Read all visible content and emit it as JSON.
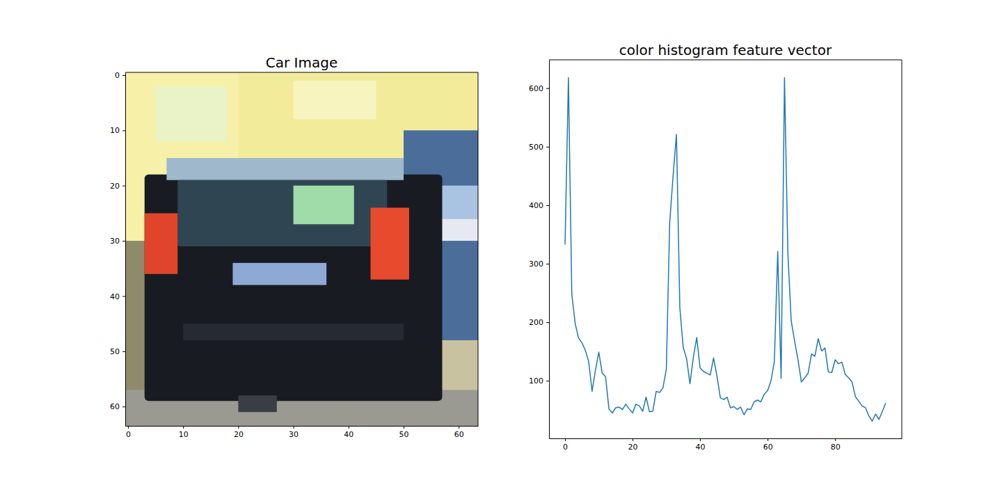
{
  "chart_data": [
    {
      "type": "image",
      "title": "Car Image",
      "xlim": [
        -0.5,
        63.5
      ],
      "ylim": [
        63.5,
        -0.5
      ],
      "xticks": [
        0,
        10,
        20,
        30,
        40,
        50,
        60
      ],
      "yticks": [
        0,
        10,
        20,
        30,
        40,
        50,
        60
      ]
    },
    {
      "type": "line",
      "title": "color histogram feature vector",
      "color": "#1f77b4",
      "x": [
        0,
        1,
        2,
        3,
        4,
        5,
        6,
        7,
        8,
        9,
        10,
        11,
        12,
        13,
        14,
        15,
        16,
        17,
        18,
        19,
        20,
        21,
        22,
        23,
        24,
        25,
        26,
        27,
        28,
        29,
        30,
        31,
        32,
        33,
        34,
        35,
        36,
        37,
        38,
        39,
        40,
        41,
        42,
        43,
        44,
        45,
        46,
        47,
        48,
        49,
        50,
        51,
        52,
        53,
        54,
        55,
        56,
        57,
        58,
        59,
        60,
        61,
        62,
        63,
        64,
        65,
        66,
        67,
        68,
        69,
        70,
        71,
        72,
        73,
        74,
        75,
        76,
        77,
        78,
        79,
        80,
        81,
        82,
        83,
        84,
        85,
        86,
        87,
        88,
        89,
        90,
        91,
        92,
        93,
        94,
        95
      ],
      "values": [
        333,
        618,
        248,
        198,
        173,
        165,
        152,
        133,
        82,
        118,
        149,
        113,
        107,
        52,
        45,
        54,
        55,
        51,
        60,
        52,
        45,
        60,
        57,
        48,
        72,
        47,
        48,
        82,
        80,
        88,
        120,
        370,
        450,
        521,
        225,
        157,
        138,
        95,
        140,
        174,
        122,
        116,
        113,
        110,
        139,
        108,
        71,
        68,
        72,
        54,
        56,
        51,
        55,
        42,
        52,
        51,
        64,
        67,
        64,
        77,
        83,
        100,
        133,
        321,
        104,
        618,
        318,
        202,
        168,
        136,
        98,
        105,
        113,
        146,
        142,
        172,
        151,
        156,
        115,
        114,
        136,
        129,
        132,
        111,
        105,
        98,
        73,
        65,
        57,
        54,
        40,
        31,
        43,
        34,
        48,
        62
      ],
      "xlim": [
        -4.75,
        99.75
      ],
      "ylim": [
        1.6,
        648.4
      ],
      "xticks": [
        0,
        20,
        40,
        60,
        80
      ],
      "yticks": [
        100,
        200,
        300,
        400,
        500,
        600
      ]
    }
  ]
}
